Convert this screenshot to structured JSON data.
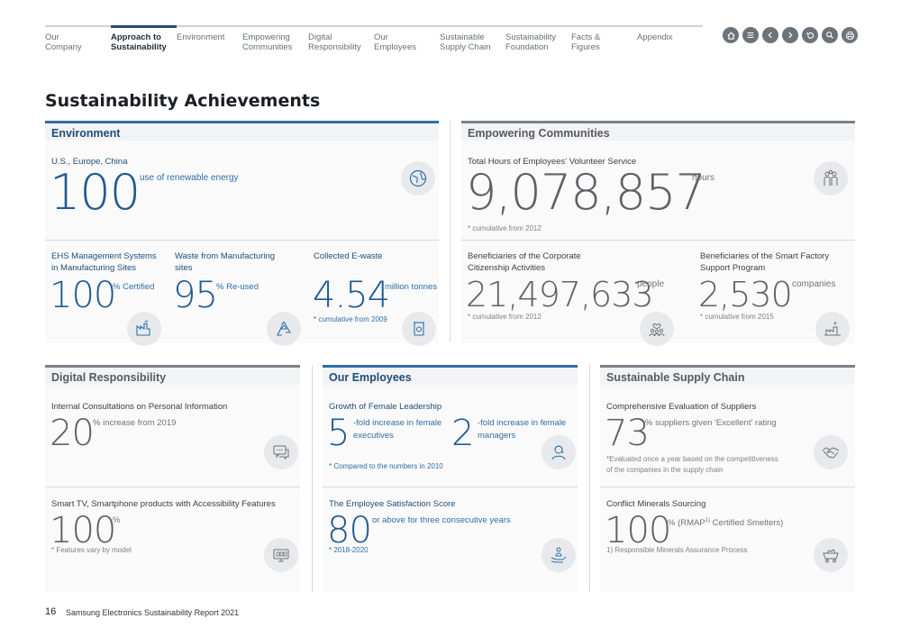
{
  "nav": {
    "items": [
      {
        "label": "Our\nCompany"
      },
      {
        "label": "Approach to\nSustainability"
      },
      {
        "label": "Environment"
      },
      {
        "label": "Empowering\nCommunities"
      },
      {
        "label": "Digital\nResponsibility"
      },
      {
        "label": "Our\nEmployees"
      },
      {
        "label": "Sustainable\nSupply Chain"
      },
      {
        "label": "Sustainability\nFoundation"
      },
      {
        "label": "Facts &\nFigures"
      },
      {
        "label": "Appendix"
      }
    ],
    "icons": [
      "home-icon",
      "menu-icon",
      "prev-icon",
      "next-icon",
      "back-icon",
      "search-icon",
      "print-icon"
    ]
  },
  "title": "Sustainability Achievements",
  "environment": {
    "heading": "Environment",
    "renewable": {
      "label": "U.S., Europe, China",
      "value": "100",
      "unit": "use of renewable energy"
    },
    "ehs": {
      "label": "EHS Management Systems\nin Manufacturing Sites",
      "value": "100",
      "unit": "% Certified"
    },
    "waste": {
      "label": "Waste from Manufacturing\nsites",
      "value": "95",
      "unit": "% Re-used"
    },
    "ewaste": {
      "label": "Collected E-waste",
      "value": "4.54",
      "unit": "million tonnes",
      "note": "* cumulative from 2009"
    }
  },
  "communities": {
    "heading": "Empowering Communities",
    "volunteer": {
      "label": "Total Hours of Employees' Volunteer Service",
      "value": "9,078,857",
      "unit": "hours",
      "note": "* cumulative from 2012"
    },
    "csr": {
      "label": "Beneficiaries of the Corporate\nCitizenship Activities",
      "value": "21,497,633",
      "unit": "people",
      "note": "* cumulative from 2012"
    },
    "factory": {
      "label": "Beneficiaries of the Smart Factory\nSupport Program",
      "value": "2,530",
      "unit": "companies",
      "note": "* cumulative from 2015"
    }
  },
  "digital": {
    "heading": "Digital Responsibility",
    "consult": {
      "label": "Internal Consultations on Personal Information",
      "value": "20",
      "unit": "% increase from 2019"
    },
    "access": {
      "label": "Smart TV, Smartphone products with Accessibility Features",
      "value": "100",
      "unit": "%",
      "note": "* Features vary by model"
    }
  },
  "employees": {
    "heading": "Our Employees",
    "female": {
      "label": "Growth of Female Leadership",
      "value1": "5",
      "unit1": "-fold increase in female\nexecutives",
      "value2": "2",
      "unit2": "-fold increase in female\nmanagers",
      "note": "* Compared to the numbers in 2010"
    },
    "satisfaction": {
      "label": "The Employee Satisfaction Score",
      "value": "80",
      "unit": "or above for three consecutive years",
      "note": "* 2018-2020"
    }
  },
  "supply": {
    "heading": "Sustainable Supply Chain",
    "eval": {
      "label": "Comprehensive Evaluation of Suppliers",
      "value": "73",
      "unit": "% suppliers given 'Excellent' rating",
      "note": "*Evaluated once a year based on the competitiveness\n of the companies in the supply chain"
    },
    "minerals": {
      "label": "Conflict Minerals Sourcing",
      "value": "100",
      "unit": "% (RMAP",
      "sup": "1)",
      "unit_tail": " Certified Smelters)",
      "note": "1) Responsible Minerals Assurance Process"
    }
  },
  "footer": {
    "page": "16",
    "text": "Samsung Electronics Sustainability Report 2021"
  }
}
